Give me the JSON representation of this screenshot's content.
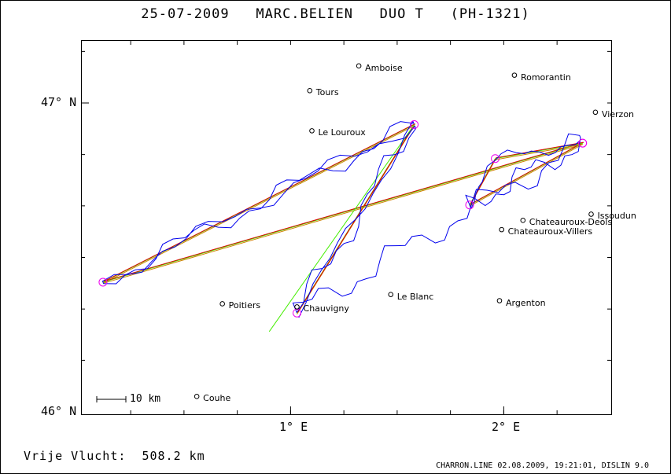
{
  "title": {
    "date": "25-07-2009",
    "pilot": "MARC.BELIEN",
    "glider": "DUO T",
    "registration": "(PH-1321)"
  },
  "axes": {
    "lat_labels": [
      "47° N",
      "46° N"
    ],
    "lon_labels": [
      "1° E",
      "2° E"
    ]
  },
  "scale_bar": {
    "label": "10 km"
  },
  "footer": {
    "distance_label": "Vrije Vlucht:",
    "distance_value": "508.2 km",
    "file_info": "CHARRON.LINE 02.08.2009, 19:21:01, DISLIN 9.0"
  },
  "places": [
    {
      "name": "Amboise",
      "lon": 1.32,
      "lat": 47.12
    },
    {
      "name": "Tours",
      "lon": 1.09,
      "lat": 47.04
    },
    {
      "name": "Romorantin",
      "lon": 2.05,
      "lat": 47.09
    },
    {
      "name": "Vierzon",
      "lon": 2.43,
      "lat": 46.97
    },
    {
      "name": "Le Louroux",
      "lon": 1.1,
      "lat": 46.91
    },
    {
      "name": "Issoudun",
      "lon": 2.41,
      "lat": 46.64
    },
    {
      "name": "Chateauroux-Deols",
      "lon": 2.09,
      "lat": 46.62
    },
    {
      "name": "Chateauroux-Villers",
      "lon": 1.99,
      "lat": 46.59
    },
    {
      "name": "Poitiers",
      "lon": 0.68,
      "lat": 46.35
    },
    {
      "name": "Chauvigny",
      "lon": 1.03,
      "lat": 46.34
    },
    {
      "name": "Le Blanc",
      "lon": 1.47,
      "lat": 46.38
    },
    {
      "name": "Argenton",
      "lon": 1.98,
      "lat": 46.36
    },
    {
      "name": "Couhe",
      "lon": 0.56,
      "lat": 46.05
    }
  ],
  "turnpoints": [
    {
      "lon": 1.03,
      "lat": 46.32
    },
    {
      "lon": 1.58,
      "lat": 46.93
    },
    {
      "lon": 0.12,
      "lat": 46.42
    },
    {
      "lon": 2.37,
      "lat": 46.87
    },
    {
      "lon": 1.84,
      "lat": 46.67
    },
    {
      "lon": 1.96,
      "lat": 46.82
    },
    {
      "lon": 2.37,
      "lat": 46.87
    }
  ],
  "colors": {
    "frame": "#000000",
    "track": "#0000ee",
    "task_red": "#dd0000",
    "task_green": "#44ee00",
    "task_orange": "#d08000",
    "turnpoint": "#ee00ee"
  }
}
